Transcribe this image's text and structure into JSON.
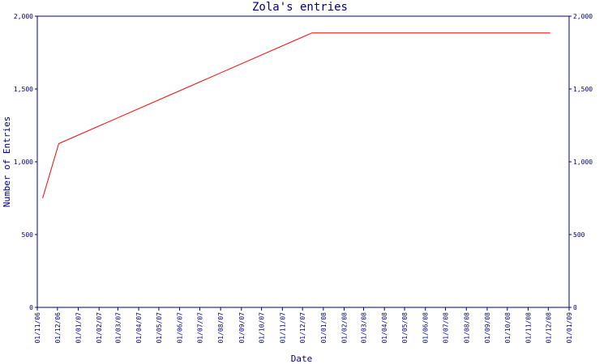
{
  "chart_data": {
    "type": "line",
    "title": "Zola's entries",
    "xlabel": "Date",
    "ylabel": "Number of Entries",
    "ylim": [
      0,
      2000
    ],
    "y_ticks": [
      0,
      500,
      1000,
      1500,
      2000
    ],
    "y_tick_labels": [
      "0",
      "500",
      "1,000",
      "1,500",
      "2,000"
    ],
    "x_ticks": [
      "2006-11-01",
      "2006-12-01",
      "2007-01-01",
      "2007-02-01",
      "2007-03-01",
      "2007-04-01",
      "2007-05-01",
      "2007-06-01",
      "2007-07-01",
      "2007-08-01",
      "2007-09-01",
      "2007-10-01",
      "2007-11-01",
      "2007-12-01",
      "2008-01-01",
      "2008-02-01",
      "2008-03-01",
      "2008-04-01",
      "2008-05-01",
      "2008-06-01",
      "2008-07-01",
      "2008-08-01",
      "2008-09-01",
      "2008-10-01",
      "2008-11-01",
      "2008-12-01",
      "2009-01-01"
    ],
    "x_tick_labels": [
      "01/11/06",
      "01/12/06",
      "01/01/07",
      "01/02/07",
      "01/03/07",
      "01/04/07",
      "01/05/07",
      "01/06/07",
      "01/07/07",
      "01/08/07",
      "01/09/07",
      "01/10/07",
      "01/11/07",
      "01/12/07",
      "01/01/08",
      "01/02/08",
      "01/03/08",
      "01/04/08",
      "01/05/08",
      "01/06/08",
      "01/07/08",
      "01/08/08",
      "01/09/08",
      "01/10/08",
      "01/11/08",
      "01/12/08",
      "01/01/09"
    ],
    "grid": false,
    "series": [
      {
        "color": "#ff0000",
        "points": [
          {
            "x": "2006-11-09",
            "y": 750
          },
          {
            "x": "2006-12-03",
            "y": 1125
          },
          {
            "x": "2007-12-15",
            "y": 1885
          },
          {
            "x": "2008-12-04",
            "y": 1885
          }
        ]
      }
    ],
    "axis_color": "#000080"
  }
}
